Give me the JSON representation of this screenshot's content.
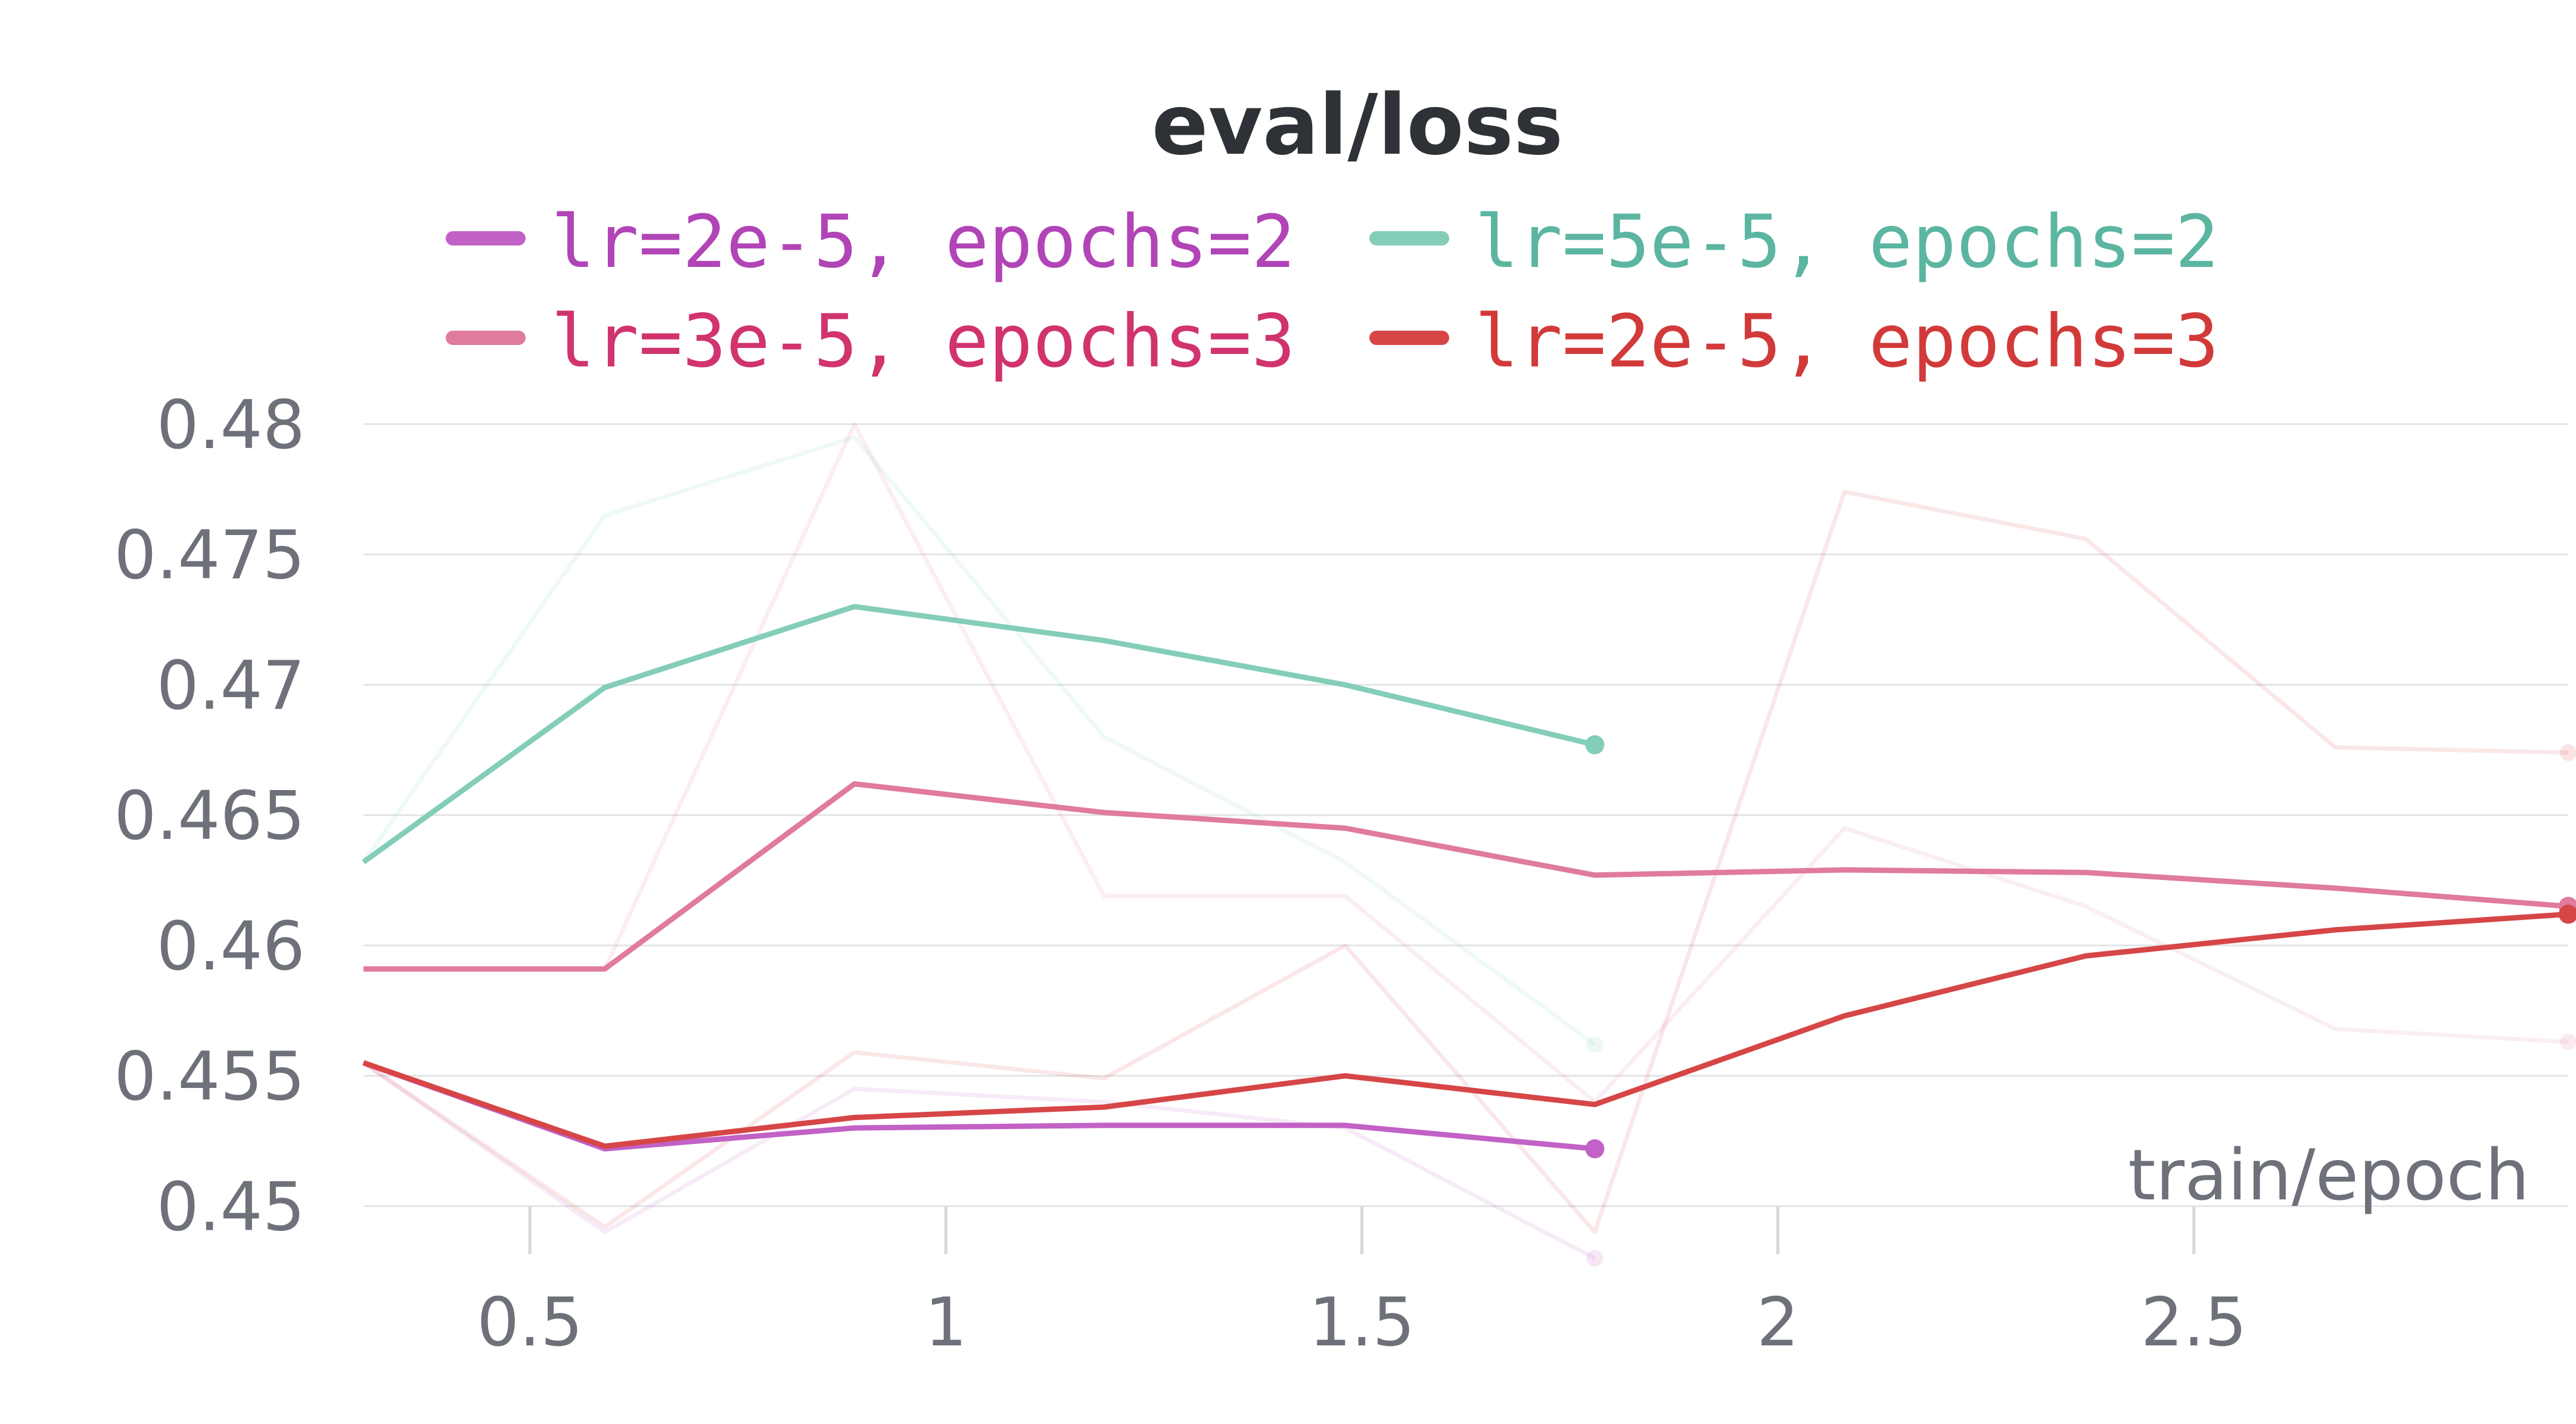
{
  "chart_data": {
    "type": "line",
    "title": "eval/loss",
    "xlabel": "train/epoch",
    "ylabel": "",
    "xlim": [
      0.3,
      2.95
    ],
    "ylim": [
      0.4485,
      0.4805
    ],
    "xticks": [
      "0.5",
      "1",
      "1.5",
      "2",
      "2.5"
    ],
    "xtick_values": [
      0.5,
      1,
      1.5,
      2,
      2.5
    ],
    "yticks": [
      "0.45",
      "0.455",
      "0.46",
      "0.465",
      "0.47",
      "0.475",
      "0.48"
    ],
    "ytick_values": [
      0.45,
      0.455,
      0.46,
      0.465,
      0.47,
      0.475,
      0.48
    ],
    "grid": "horizontal",
    "legend_position": "top",
    "series": [
      {
        "name": "lr=2e-5, epochs=2",
        "color": "#c261c6",
        "text_color": "#b144b6",
        "x": [
          0.3,
          0.59,
          0.89,
          1.19,
          1.48,
          1.78
        ],
        "smoothed": [
          0.4555,
          0.4522,
          0.453,
          0.4531,
          0.4531,
          0.4522
        ],
        "raw": [
          0.4555,
          0.449,
          0.4545,
          0.454,
          0.453,
          0.448
        ]
      },
      {
        "name": "lr=5e-5, epochs=2",
        "color": "#83cdb9",
        "text_color": "#5bb5a1",
        "x": [
          0.3,
          0.59,
          0.89,
          1.19,
          1.48,
          1.78
        ],
        "smoothed": [
          0.4632,
          0.4699,
          0.473,
          0.4717,
          0.47,
          0.4677
        ],
        "raw": [
          0.4632,
          0.4765,
          0.4795,
          0.468,
          0.4632,
          0.4562
        ]
      },
      {
        "name": "lr=3e-5, epochs=3",
        "color": "#e07a9f",
        "text_color": "#d0336d",
        "x": [
          0.3,
          0.59,
          0.89,
          1.19,
          1.48,
          1.78,
          2.08,
          2.37,
          2.67,
          2.95
        ],
        "smoothed": [
          0.4591,
          0.4591,
          0.4662,
          0.4651,
          0.4645,
          0.4627,
          0.4629,
          0.4628,
          0.4622,
          0.4615
        ],
        "raw": [
          0.4591,
          0.4591,
          0.48,
          0.4619,
          0.4619,
          0.454,
          0.4645,
          0.4615,
          0.4568,
          0.4563
        ]
      },
      {
        "name": "lr=2e-5, epochs=3",
        "color": "#d64646",
        "text_color": "#d23a3a",
        "x": [
          0.3,
          0.59,
          0.89,
          1.19,
          1.48,
          1.78,
          2.08,
          2.37,
          2.67,
          2.95
        ],
        "smoothed": [
          0.4555,
          0.4523,
          0.4534,
          0.4538,
          0.455,
          0.4539,
          0.4573,
          0.4596,
          0.4606,
          0.4612
        ],
        "raw": [
          0.4555,
          0.4492,
          0.4559,
          0.4549,
          0.46,
          0.449,
          0.4774,
          0.4756,
          0.4676,
          0.4674
        ]
      }
    ]
  }
}
